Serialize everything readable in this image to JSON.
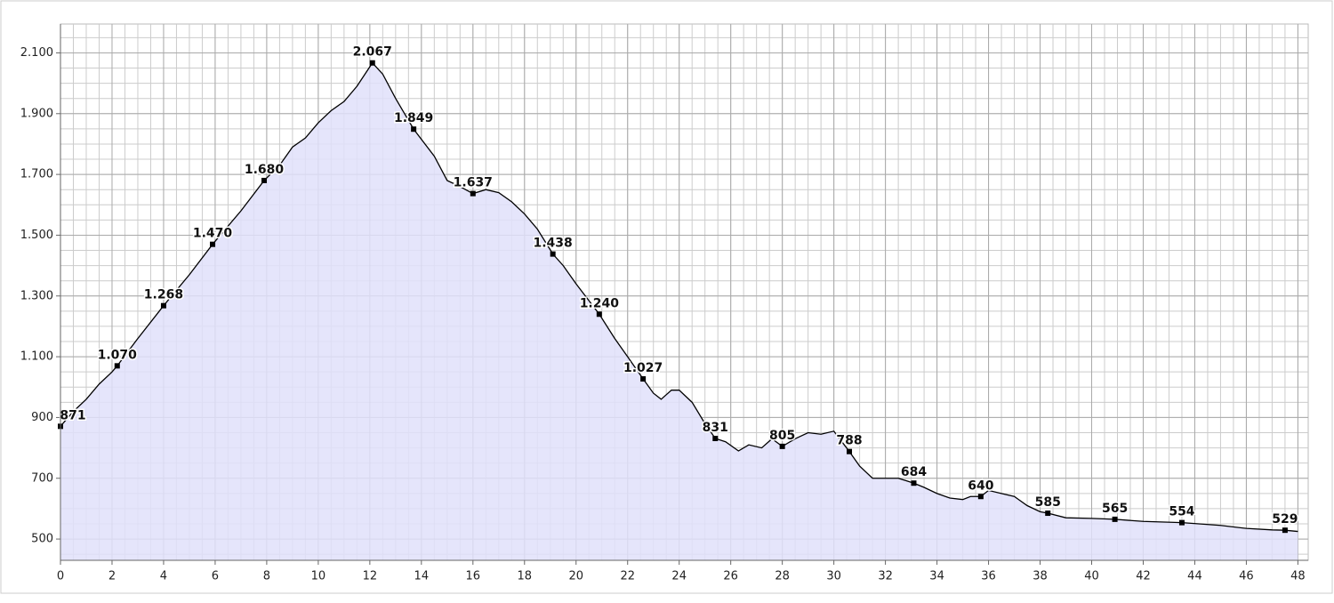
{
  "chart_data": {
    "type": "area",
    "x": [
      0,
      0.5,
      1,
      1.5,
      2,
      2.2,
      3,
      4,
      5,
      5.9,
      7,
      7.9,
      8.5,
      9,
      9.5,
      10,
      10.5,
      11,
      11.5,
      12.1,
      12.5,
      13,
      13.7,
      14.5,
      15,
      15.5,
      16,
      16.5,
      17,
      17.5,
      18,
      18.5,
      19.1,
      19.5,
      20,
      20.9,
      21.5,
      22,
      22.6,
      23,
      23.3,
      23.7,
      24,
      24.5,
      25,
      25.4,
      25.8,
      26.3,
      26.7,
      27.2,
      27.6,
      28,
      28.5,
      29,
      29.5,
      30,
      30.6,
      31,
      31.5,
      32,
      32.5,
      33.1,
      33.5,
      34,
      34.5,
      35,
      35.3,
      35.7,
      36,
      36.5,
      37,
      37.5,
      38,
      38.3,
      39,
      40,
      40.9,
      42,
      43.5,
      45,
      46,
      47,
      47.5,
      48
    ],
    "values": [
      871,
      920,
      960,
      1010,
      1050,
      1070,
      1160,
      1268,
      1370,
      1470,
      1580,
      1680,
      1730,
      1790,
      1820,
      1870,
      1910,
      1940,
      1990,
      2067,
      2030,
      1950,
      1849,
      1760,
      1680,
      1660,
      1637,
      1650,
      1640,
      1610,
      1570,
      1520,
      1438,
      1400,
      1340,
      1240,
      1160,
      1100,
      1027,
      980,
      960,
      990,
      990,
      950,
      880,
      831,
      820,
      790,
      810,
      800,
      830,
      805,
      830,
      850,
      845,
      855,
      788,
      740,
      700,
      700,
      700,
      684,
      670,
      650,
      635,
      630,
      640,
      640,
      660,
      650,
      640,
      610,
      590,
      585,
      570,
      568,
      565,
      558,
      554,
      545,
      535,
      530,
      529,
      525
    ],
    "color": "#000000",
    "fill_color": "#e0e0fa",
    "markers": {
      "x": [
        0,
        2.2,
        4,
        5.9,
        7.9,
        12.1,
        13.7,
        16,
        19.1,
        20.9,
        22.6,
        25.4,
        28,
        30.6,
        33.1,
        35.7,
        38.3,
        40.9,
        43.5,
        47.5
      ],
      "values": [
        871,
        1070,
        1268,
        1470,
        1680,
        2067,
        1849,
        1637,
        1438,
        1240,
        1027,
        831,
        805,
        788,
        684,
        640,
        585,
        565,
        554,
        529
      ],
      "value_labels": [
        "871",
        "1.070",
        "1.268",
        "1.470",
        "1.680",
        "2.067",
        "1.849",
        "1.637",
        "1.438",
        "1.240",
        "1.027",
        "831",
        "805",
        "788",
        "684",
        "640",
        "585",
        "565",
        "554",
        "529"
      ]
    },
    "xlim": [
      0,
      48.4
    ],
    "ylim": [
      430,
      2195
    ],
    "xticks": [
      0,
      2,
      4,
      6,
      8,
      10,
      12,
      14,
      16,
      18,
      20,
      22,
      24,
      26,
      28,
      30,
      32,
      34,
      36,
      38,
      40,
      42,
      44,
      46,
      48
    ],
    "yticks": [
      500,
      700,
      900,
      {
        "value": 1100,
        "label": "1.100"
      },
      {
        "value": 1300,
        "label": "1.300"
      },
      {
        "value": 1500,
        "label": "1.500"
      },
      {
        "value": 1700,
        "label": "1.700"
      },
      {
        "value": 1900,
        "label": "1.900"
      },
      {
        "value": 2100,
        "label": "2.100"
      }
    ],
    "grid": true
  }
}
